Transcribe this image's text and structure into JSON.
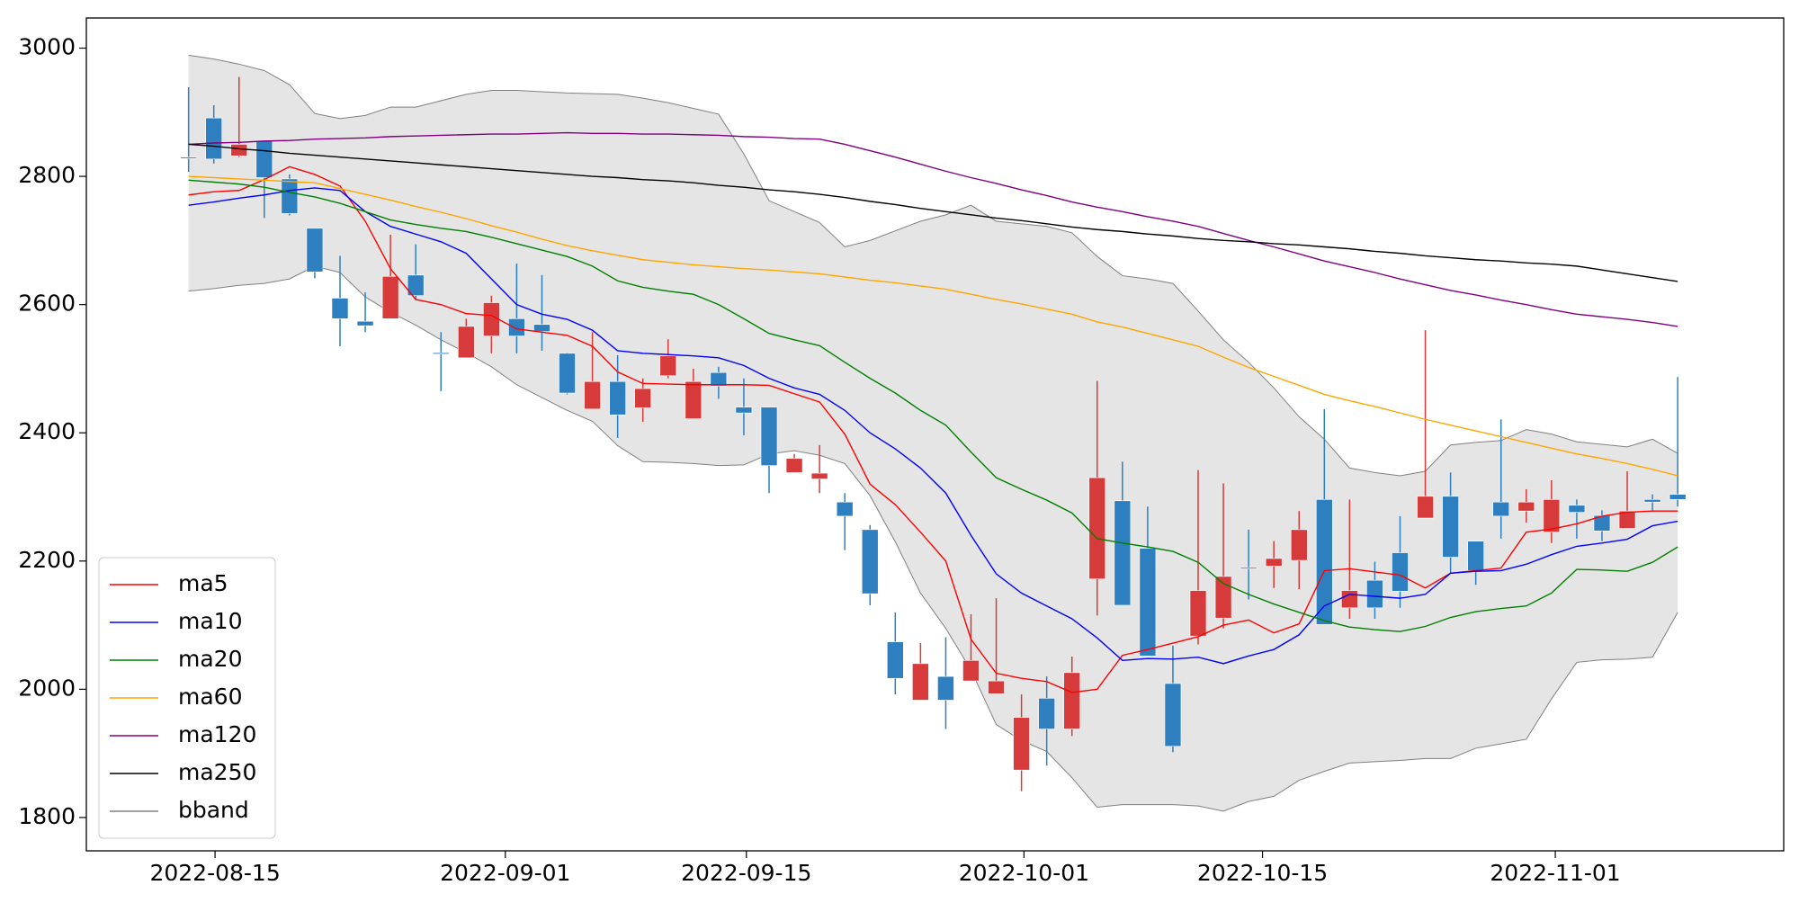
{
  "chart_data": {
    "type": "candlestick",
    "x": [
      0,
      1,
      2,
      3,
      4,
      5,
      6,
      7,
      8,
      9,
      10,
      11,
      12,
      13,
      14,
      15,
      16,
      17,
      18,
      19,
      20,
      21,
      22,
      23,
      24,
      25,
      26,
      27,
      28,
      29,
      30,
      31,
      32,
      33,
      34,
      35,
      36,
      37,
      38,
      39,
      40,
      41,
      42,
      43,
      44,
      45,
      46,
      47,
      48,
      49,
      50,
      51,
      52,
      53,
      54,
      55,
      56,
      57,
      58,
      59
    ],
    "xlim": [
      -4.05,
      63.2
    ],
    "xticks": [
      {
        "value": 1.05,
        "label": "2022-08-15"
      },
      {
        "value": 12.55,
        "label": "2022-09-01"
      },
      {
        "value": 22.1,
        "label": "2022-09-15"
      },
      {
        "value": 33.1,
        "label": "2022-10-01"
      },
      {
        "value": 42.55,
        "label": "2022-10-15"
      },
      {
        "value": 54.15,
        "label": "2022-11-01"
      }
    ],
    "ylim": [
      1748,
      3047
    ],
    "yticks": [
      1800,
      2000,
      2200,
      2400,
      2600,
      2800,
      3000
    ],
    "legend": "lower left",
    "up_color": "#d63a3a",
    "down_color": "#2e7fbf",
    "ohlc": {
      "open": [
        2830,
        2891,
        2832,
        2855,
        2796,
        2719,
        2610,
        2574,
        2578,
        2646,
        2525,
        2517,
        2551,
        2578,
        2569,
        2524,
        2437,
        2480,
        2439,
        2489,
        2422,
        2494,
        2440,
        2440,
        2338,
        2328,
        2292,
        2249,
        2074,
        1983,
        2020,
        2013,
        1993,
        1874,
        1986,
        1938,
        2172,
        2294,
        2220,
        2009,
        2083,
        2111,
        2190,
        2192,
        2201,
        2296,
        2127,
        2170,
        2213,
        2267,
        2301,
        2231,
        2292,
        2278,
        2245,
        2287,
        2271,
        2251,
        2296,
        2304
      ],
      "high": [
        2939,
        2911,
        2955,
        2855,
        2803,
        2719,
        2676,
        2619,
        2709,
        2694,
        2557,
        2578,
        2614,
        2664,
        2646,
        2525,
        2557,
        2521,
        2485,
        2546,
        2500,
        2503,
        2485,
        2440,
        2367,
        2381,
        2306,
        2256,
        2120,
        2072,
        2081,
        2117,
        2142,
        1992,
        2020,
        2051,
        2481,
        2355,
        2285,
        2068,
        2342,
        2321,
        2249,
        2231,
        2278,
        2437,
        2296,
        2199,
        2270,
        2560,
        2338,
        2231,
        2421,
        2312,
        2326,
        2296,
        2279,
        2340,
        2304,
        2487
      ],
      "low": [
        2807,
        2820,
        2830,
        2735,
        2739,
        2641,
        2535,
        2557,
        2578,
        2607,
        2465,
        2517,
        2524,
        2524,
        2528,
        2460,
        2437,
        2392,
        2417,
        2485,
        2422,
        2453,
        2396,
        2306,
        2338,
        2306,
        2217,
        2131,
        1992,
        1983,
        1938,
        2013,
        1993,
        1841,
        1881,
        1927,
        2115,
        2131,
        2052,
        1902,
        2070,
        2095,
        2140,
        2158,
        2156,
        2101,
        2110,
        2110,
        2127,
        2267,
        2181,
        2163,
        2235,
        2260,
        2228,
        2235,
        2231,
        2251,
        2279,
        2285
      ],
      "close": [
        2828,
        2827,
        2850,
        2798,
        2742,
        2651,
        2578,
        2567,
        2644,
        2614,
        2523,
        2566,
        2603,
        2551,
        2558,
        2462,
        2480,
        2428,
        2469,
        2520,
        2480,
        2473,
        2431,
        2349,
        2360,
        2337,
        2270,
        2149,
        2017,
        2040,
        1983,
        2045,
        2013,
        1956,
        1938,
        2026,
        2330,
        2131,
        2052,
        1911,
        2154,
        2176,
        2188,
        2204,
        2249,
        2101,
        2154,
        2127,
        2153,
        2301,
        2206,
        2185,
        2270,
        2292,
        2296,
        2276,
        2247,
        2278,
        2292,
        2296
      ]
    },
    "series": [
      {
        "name": "ma5",
        "color": "#ff0000",
        "values": [
          2771,
          2776,
          2778,
          2795,
          2815,
          2803,
          2785,
          2730,
          2656,
          2608,
          2600,
          2586,
          2583,
          2562,
          2557,
          2552,
          2535,
          2495,
          2477,
          2476,
          2475,
          2475,
          2475,
          2474,
          2461,
          2448,
          2398,
          2320,
          2288,
          2245,
          2200,
          2078,
          2025,
          2017,
          2012,
          1995,
          2000,
          2053,
          2062,
          2072,
          2082,
          2100,
          2108,
          2088,
          2102,
          2185,
          2188,
          2183,
          2178,
          2158,
          2181,
          2185,
          2189,
          2245,
          2250,
          2258,
          2270,
          2276,
          2278,
          2278
        ]
      },
      {
        "name": "ma10",
        "color": "#0000ff",
        "values": [
          2755,
          2760,
          2766,
          2771,
          2778,
          2782,
          2778,
          2745,
          2722,
          2710,
          2698,
          2680,
          2640,
          2600,
          2585,
          2577,
          2560,
          2528,
          2524,
          2522,
          2520,
          2517,
          2505,
          2485,
          2470,
          2460,
          2435,
          2400,
          2375,
          2345,
          2306,
          2240,
          2180,
          2150,
          2130,
          2110,
          2080,
          2045,
          2048,
          2047,
          2050,
          2040,
          2052,
          2062,
          2085,
          2130,
          2148,
          2145,
          2142,
          2148,
          2181,
          2184,
          2185,
          2195,
          2210,
          2223,
          2228,
          2234,
          2255,
          2262
        ]
      },
      {
        "name": "ma20",
        "color": "#008000",
        "values": [
          2794,
          2791,
          2788,
          2783,
          2775,
          2768,
          2758,
          2745,
          2732,
          2725,
          2719,
          2714,
          2705,
          2695,
          2685,
          2675,
          2660,
          2637,
          2627,
          2621,
          2616,
          2600,
          2578,
          2555,
          2545,
          2536,
          2510,
          2485,
          2462,
          2435,
          2412,
          2370,
          2330,
          2312,
          2295,
          2275,
          2235,
          2228,
          2222,
          2215,
          2198,
          2165,
          2148,
          2133,
          2120,
          2107,
          2097,
          2093,
          2090,
          2098,
          2112,
          2121,
          2126,
          2130,
          2150,
          2187,
          2186,
          2184,
          2198,
          2222
        ]
      },
      {
        "name": "ma60",
        "color": "#ffa500",
        "values": [
          2800,
          2798,
          2796,
          2794,
          2792,
          2790,
          2781,
          2772,
          2763,
          2753,
          2744,
          2734,
          2723,
          2713,
          2702,
          2692,
          2684,
          2677,
          2670,
          2666,
          2662,
          2659,
          2656,
          2654,
          2651,
          2648,
          2643,
          2638,
          2634,
          2629,
          2624,
          2616,
          2608,
          2601,
          2593,
          2585,
          2573,
          2565,
          2555,
          2545,
          2535,
          2518,
          2502,
          2488,
          2474,
          2460,
          2450,
          2441,
          2431,
          2421,
          2412,
          2403,
          2394,
          2385,
          2376,
          2367,
          2360,
          2352,
          2343,
          2333
        ]
      },
      {
        "name": "ma120",
        "color": "#800080",
        "values": [
          2850,
          2852,
          2853,
          2855,
          2856,
          2858,
          2859,
          2860,
          2862,
          2863,
          2864,
          2865,
          2866,
          2866,
          2867,
          2868,
          2867,
          2867,
          2866,
          2866,
          2865,
          2864,
          2862,
          2861,
          2859,
          2858,
          2850,
          2840,
          2830,
          2819,
          2808,
          2798,
          2789,
          2779,
          2770,
          2760,
          2752,
          2745,
          2737,
          2730,
          2722,
          2711,
          2700,
          2690,
          2679,
          2668,
          2659,
          2650,
          2640,
          2631,
          2622,
          2615,
          2607,
          2600,
          2592,
          2585,
          2581,
          2577,
          2572,
          2566
        ]
      },
      {
        "name": "ma250",
        "color": "#000000",
        "values": [
          2850,
          2847,
          2843,
          2840,
          2836,
          2833,
          2830,
          2827,
          2824,
          2821,
          2818,
          2815,
          2812,
          2809,
          2806,
          2803,
          2800,
          2798,
          2795,
          2793,
          2790,
          2786,
          2783,
          2779,
          2776,
          2772,
          2767,
          2761,
          2756,
          2750,
          2745,
          2740,
          2735,
          2731,
          2726,
          2721,
          2717,
          2714,
          2710,
          2707,
          2703,
          2700,
          2698,
          2695,
          2693,
          2690,
          2687,
          2683,
          2680,
          2676,
          2673,
          2670,
          2668,
          2665,
          2663,
          2660,
          2654,
          2648,
          2642,
          2636
        ]
      }
    ],
    "band": {
      "name": "bband",
      "color": "#808080",
      "fill": "#e5e5e5",
      "upper": [
        2989,
        2983,
        2975,
        2965,
        2943,
        2898,
        2890,
        2895,
        2908,
        2908,
        2918,
        2928,
        2934,
        2934,
        2932,
        2930,
        2929,
        2928,
        2922,
        2915,
        2906,
        2897,
        2835,
        2762,
        2745,
        2728,
        2690,
        2700,
        2715,
        2730,
        2740,
        2755,
        2730,
        2726,
        2722,
        2712,
        2675,
        2645,
        2640,
        2633,
        2590,
        2545,
        2510,
        2470,
        2425,
        2390,
        2345,
        2338,
        2333,
        2340,
        2381,
        2385,
        2388,
        2405,
        2398,
        2386,
        2382,
        2378,
        2390,
        2368
      ],
      "lower": [
        2621,
        2625,
        2630,
        2633,
        2640,
        2660,
        2650,
        2612,
        2588,
        2568,
        2545,
        2525,
        2503,
        2475,
        2455,
        2435,
        2418,
        2380,
        2355,
        2354,
        2352,
        2349,
        2350,
        2367,
        2372,
        2365,
        2352,
        2302,
        2230,
        2150,
        2095,
        2030,
        1945,
        1920,
        1903,
        1862,
        1816,
        1820,
        1820,
        1820,
        1818,
        1810,
        1825,
        1833,
        1858,
        1872,
        1885,
        1887,
        1889,
        1892,
        1892,
        1908,
        1915,
        1922,
        1985,
        2042,
        2046,
        2047,
        2050,
        2120
      ]
    }
  }
}
